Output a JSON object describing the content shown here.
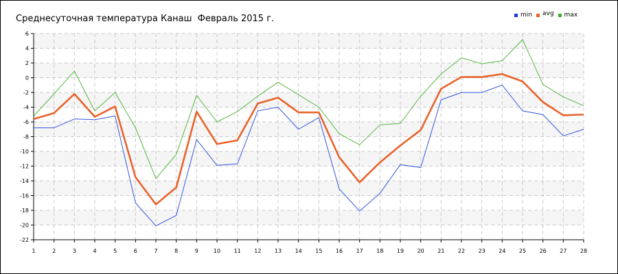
{
  "chart_data": {
    "type": "line",
    "title": "Среднесуточная температура Канаш  Февраль 2015 г.",
    "x": [
      1,
      2,
      3,
      4,
      5,
      6,
      7,
      8,
      9,
      10,
      11,
      12,
      13,
      14,
      15,
      16,
      17,
      18,
      19,
      20,
      21,
      22,
      23,
      24,
      25,
      26,
      27,
      28
    ],
    "xlim": [
      1,
      28
    ],
    "ylim": [
      -22,
      6
    ],
    "yticks": [
      6,
      4,
      2,
      0,
      -2,
      -4,
      -6,
      -8,
      -10,
      -12,
      -14,
      -16,
      -18,
      -20,
      -22
    ],
    "grid": true,
    "legend_position": "top-right",
    "series": [
      {
        "name": "min",
        "color": "#3355dd",
        "values": [
          -6.8,
          -6.8,
          -5.6,
          -5.7,
          -5.2,
          -17.0,
          -20.1,
          -18.7,
          -8.4,
          -11.9,
          -11.7,
          -4.5,
          -4.0,
          -7.0,
          -5.4,
          -15.1,
          -18.1,
          -15.7,
          -11.8,
          -12.2,
          -3.0,
          -2.0,
          -2.0,
          -1.0,
          -4.5,
          -5.0,
          -7.9,
          -7.0
        ]
      },
      {
        "name": "avg",
        "color": "#e8622a",
        "values": [
          -5.6,
          -4.8,
          -2.2,
          -5.3,
          -3.9,
          -13.5,
          -17.2,
          -14.9,
          -4.6,
          -9.0,
          -8.5,
          -3.5,
          -2.7,
          -4.7,
          -4.7,
          -10.8,
          -14.2,
          -11.5,
          -9.2,
          -7.1,
          -1.5,
          0.1,
          0.1,
          0.5,
          -0.5,
          -3.3,
          -5.1,
          -5.0
        ]
      },
      {
        "name": "max",
        "color": "#55b540",
        "values": [
          -5.2,
          -2.2,
          0.9,
          -4.5,
          -2.0,
          -6.8,
          -13.7,
          -10.4,
          -2.4,
          -6.0,
          -4.6,
          -2.5,
          -0.6,
          -2.3,
          -4.0,
          -7.6,
          -9.1,
          -6.4,
          -6.2,
          -2.5,
          0.5,
          2.7,
          1.9,
          2.3,
          5.2,
          -0.9,
          -2.6,
          -3.8
        ]
      }
    ]
  }
}
